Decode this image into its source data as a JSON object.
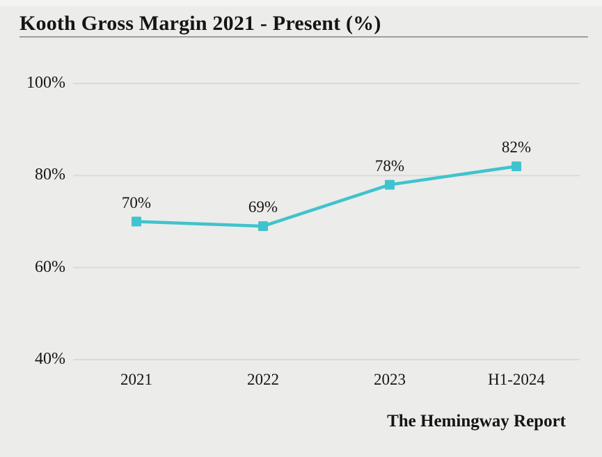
{
  "header": {
    "title": "Kooth Gross Margin 2021 - Present (%)"
  },
  "footer": {
    "attribution": "The Hemingway Report"
  },
  "colors": {
    "background": "#ececea",
    "line": "#3fc3ce",
    "marker": "#3fc3ce",
    "gridline": "#dadad8",
    "text": "#171513",
    "title_rule": "#9e9e9c"
  },
  "chart_data": {
    "type": "line",
    "title": "Kooth Gross Margin 2021 - Present (%)",
    "categories": [
      "2021",
      "2022",
      "2023",
      "H1-2024"
    ],
    "series": [
      {
        "name": "Kooth Gross Margin",
        "values": [
          70,
          69,
          78,
          82
        ]
      }
    ],
    "data_labels": [
      "70%",
      "69%",
      "78%",
      "82%"
    ],
    "xlabel": "",
    "ylabel": "",
    "ylim": [
      40,
      100
    ],
    "y_ticks": [
      {
        "value": 100,
        "label": "100%"
      },
      {
        "value": 80,
        "label": "80%"
      },
      {
        "value": 60,
        "label": "60%"
      },
      {
        "value": 40,
        "label": "40%"
      }
    ],
    "grid": "horizontal",
    "legend": "none",
    "marker_shape": "square"
  }
}
